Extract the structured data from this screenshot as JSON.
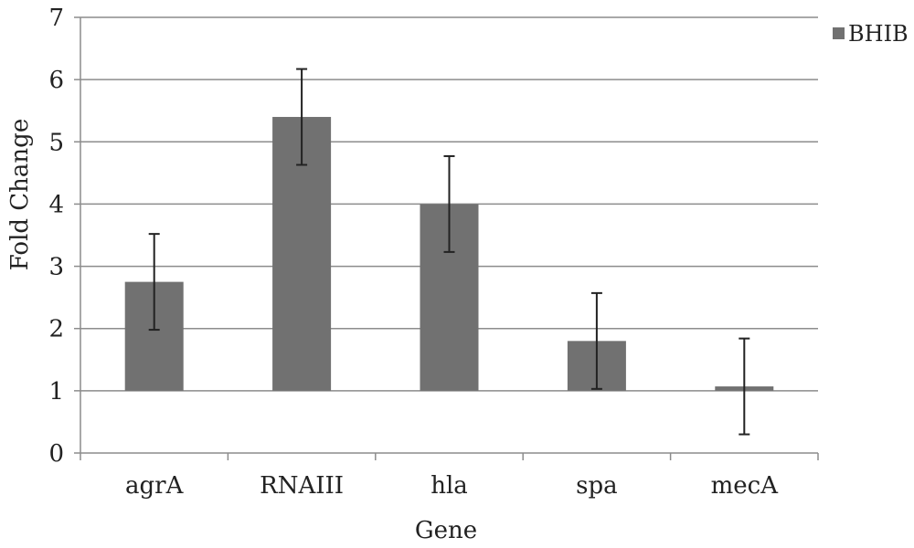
{
  "chart_data": {
    "type": "bar",
    "title": "",
    "xlabel": "Gene",
    "ylabel": "Fold Change",
    "categories": [
      "agrA",
      "RNAIII",
      "hla",
      "spa",
      "mecA"
    ],
    "series": [
      {
        "name": "BHIB",
        "values": [
          2.75,
          5.4,
          4.0,
          1.8,
          1.07
        ],
        "error": [
          0.77,
          0.77,
          0.77,
          0.77,
          0.77
        ],
        "color": "#717171"
      }
    ],
    "ylim": [
      0,
      7
    ],
    "yticks": [
      "0",
      "1",
      "2",
      "3",
      "4",
      "5",
      "6",
      "7"
    ],
    "grid": true,
    "legend": "top-right",
    "colors": {
      "bar": "#717171",
      "grid": "#8c8c8c",
      "axis": "#8c8c8c",
      "error_bar": "#222222",
      "text": "#222222"
    }
  }
}
